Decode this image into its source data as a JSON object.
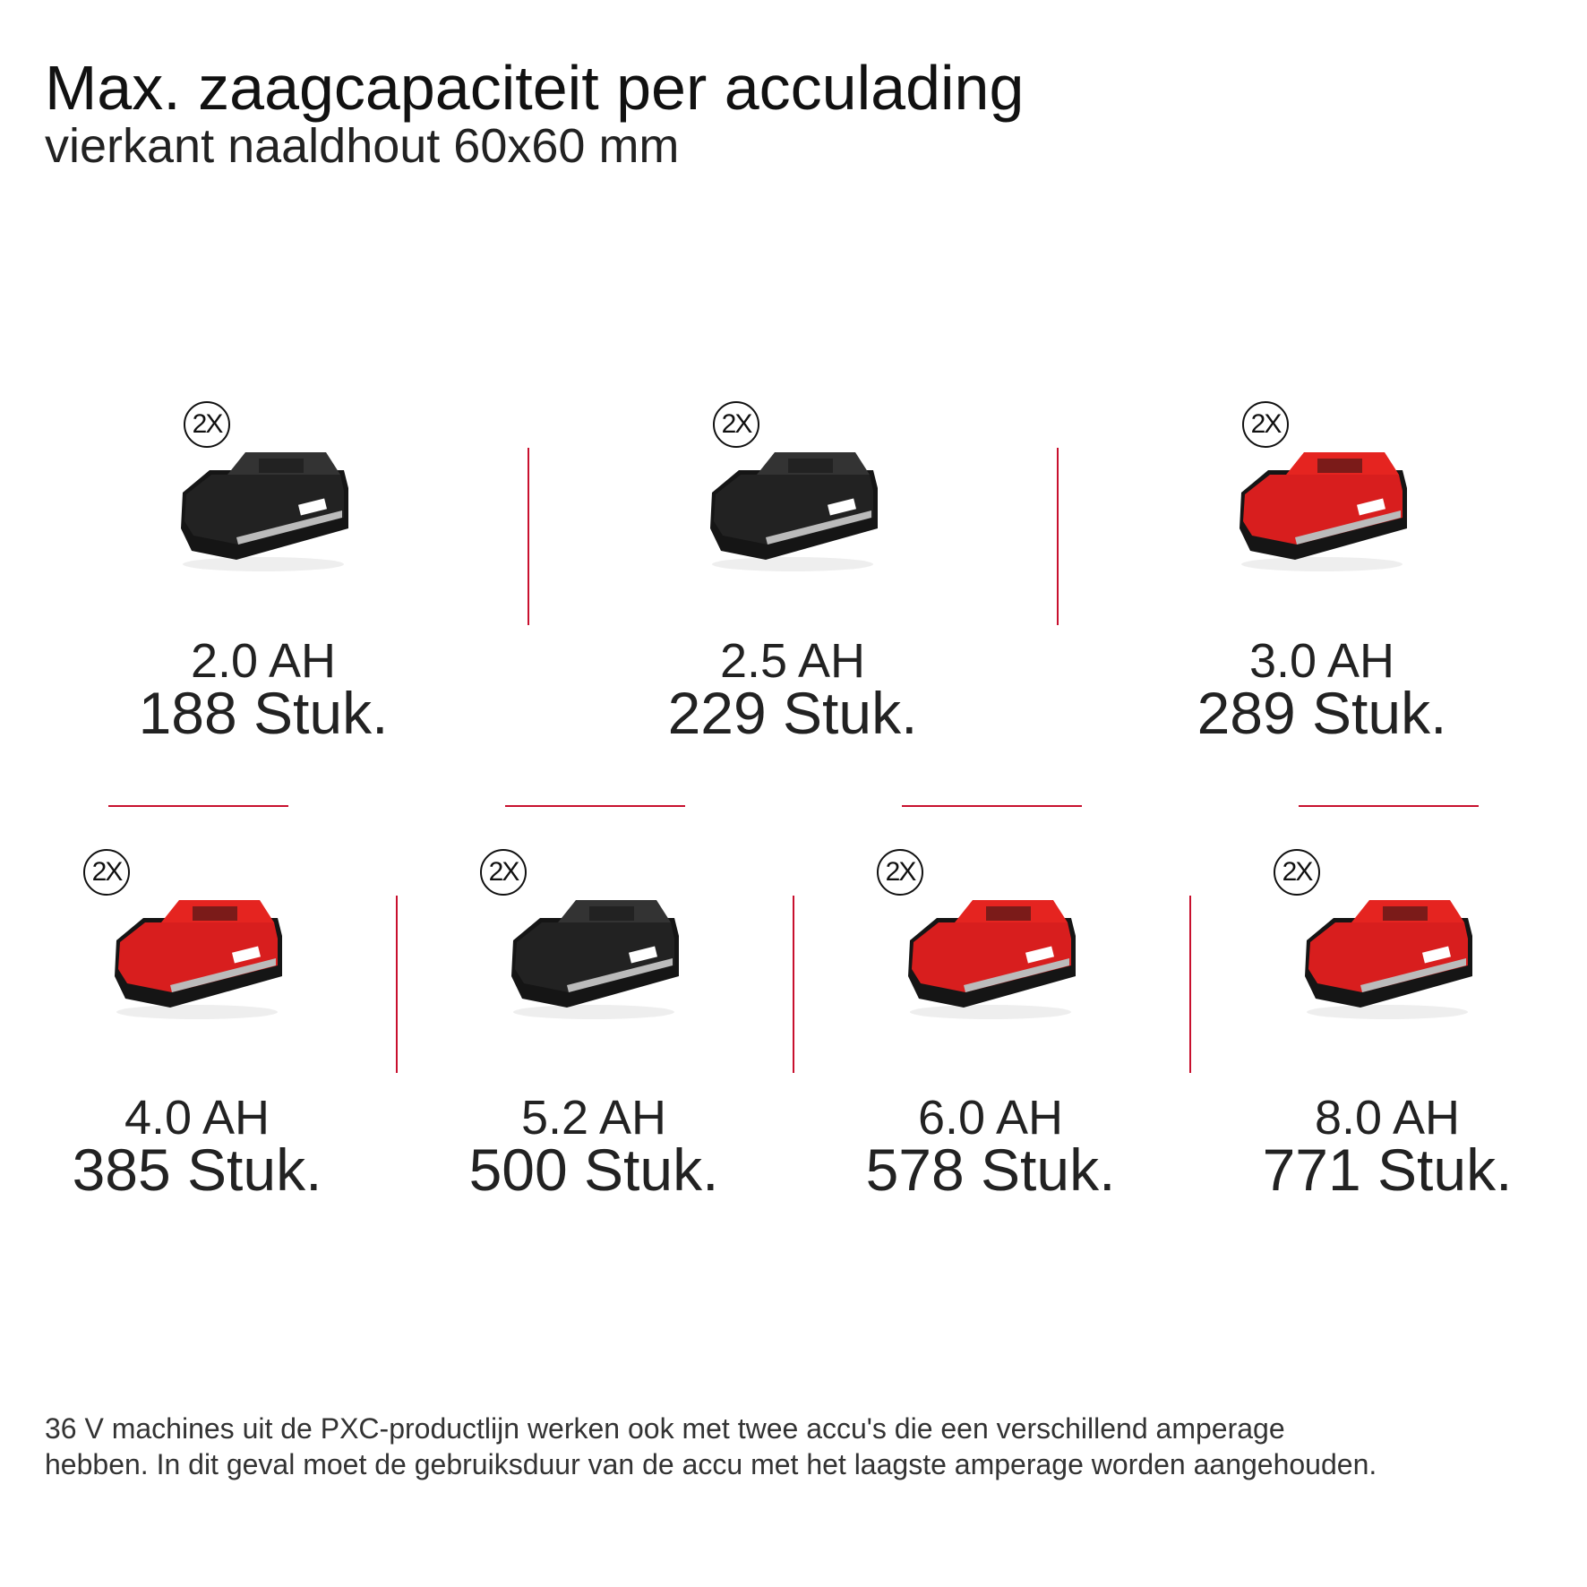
{
  "header": {
    "title": "Max. zaagcapaciteit per acculading",
    "subtitle": "vierkant naaldhout 60x60 mm"
  },
  "accent_color": "#c8102e",
  "batteries": [
    {
      "badge": "2X",
      "capacity": "2.0 AH",
      "count": "188 Stuk.",
      "style": "black"
    },
    {
      "badge": "2X",
      "capacity": "2.5 AH",
      "count": "229 Stuk.",
      "style": "black"
    },
    {
      "badge": "2X",
      "capacity": "3.0 AH",
      "count": "289 Stuk.",
      "style": "red"
    },
    {
      "badge": "2X",
      "capacity": "4.0 AH",
      "count": "385 Stuk.",
      "style": "red"
    },
    {
      "badge": "2X",
      "capacity": "5.2 AH",
      "count": "500 Stuk.",
      "style": "black"
    },
    {
      "badge": "2X",
      "capacity": "6.0 AH",
      "count": "578 Stuk.",
      "style": "red"
    },
    {
      "badge": "2X",
      "capacity": "8.0 AH",
      "count": "771 Stuk.",
      "style": "red"
    }
  ],
  "footer": {
    "line1": "36 V machines uit de PXC-productlijn werken ook met twee accu's die een verschillend amperage",
    "line2": "hebben. In dit geval moet de gebruiksduur van de accu met het laagste amperage worden aangehouden."
  }
}
